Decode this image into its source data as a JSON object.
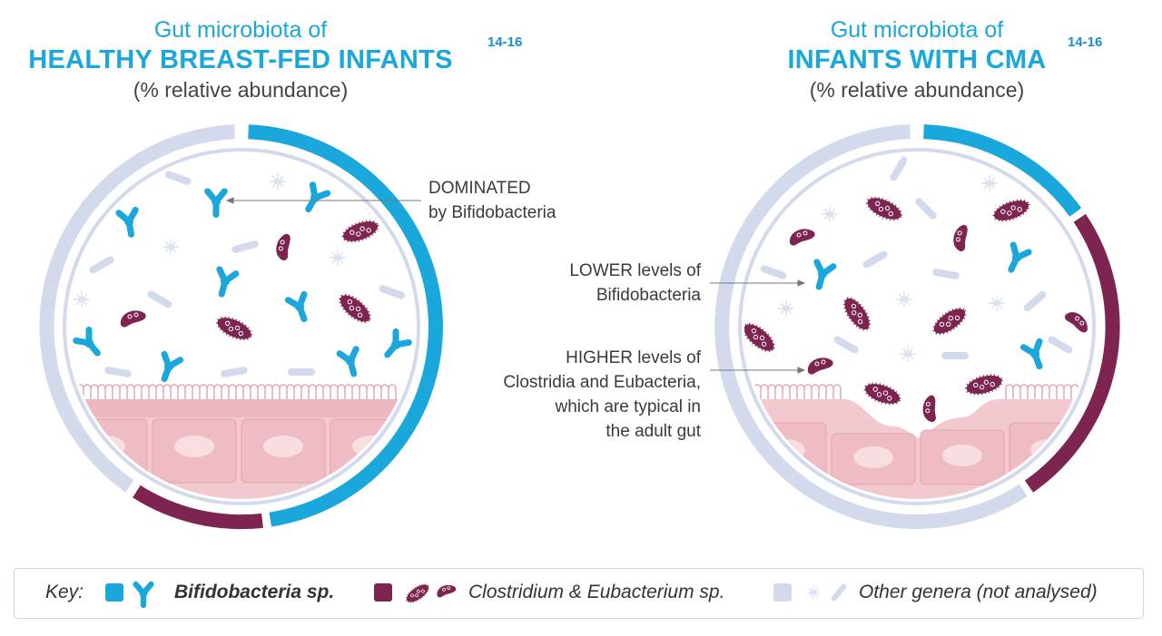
{
  "left_panel": {
    "title_line1": "Gut microbiota of",
    "title_line2": "HEALTHY BREAST-FED INFANTS",
    "title_line3": "(% relative abundance)",
    "reference": "14-16",
    "annotation_line1": "DOMINATED",
    "annotation_line2": "by Bifidobacteria"
  },
  "right_panel": {
    "title_line1": "Gut microbiota of",
    "title_line2": "INFANTS WITH CMA",
    "title_line3": "(% relative abundance)",
    "reference": "14-16",
    "annotation_lower_line1": "LOWER levels of",
    "annotation_lower_line2": "Bifidobacteria",
    "annotation_higher_line1": "HIGHER levels of",
    "annotation_higher_line2": "Clostridia and Eubacteria,",
    "annotation_higher_line3": "which are typical in",
    "annotation_higher_line4": "the adult gut"
  },
  "key": {
    "label": "Key:",
    "bifido": "Bifidobacteria sp.",
    "clostridium": "Clostridium & Eubacterium sp.",
    "other": "Other genera (not analysed)"
  },
  "colors": {
    "bifidobacteria": "#1aa7dc",
    "clostridium": "#7d2450",
    "other": "#d3daec",
    "tissue": "#f2c9cf"
  },
  "icons": [
    "bifidobacteria-icon",
    "clostridium-icon",
    "other-genera-icon",
    "epithelium-icon"
  ]
}
